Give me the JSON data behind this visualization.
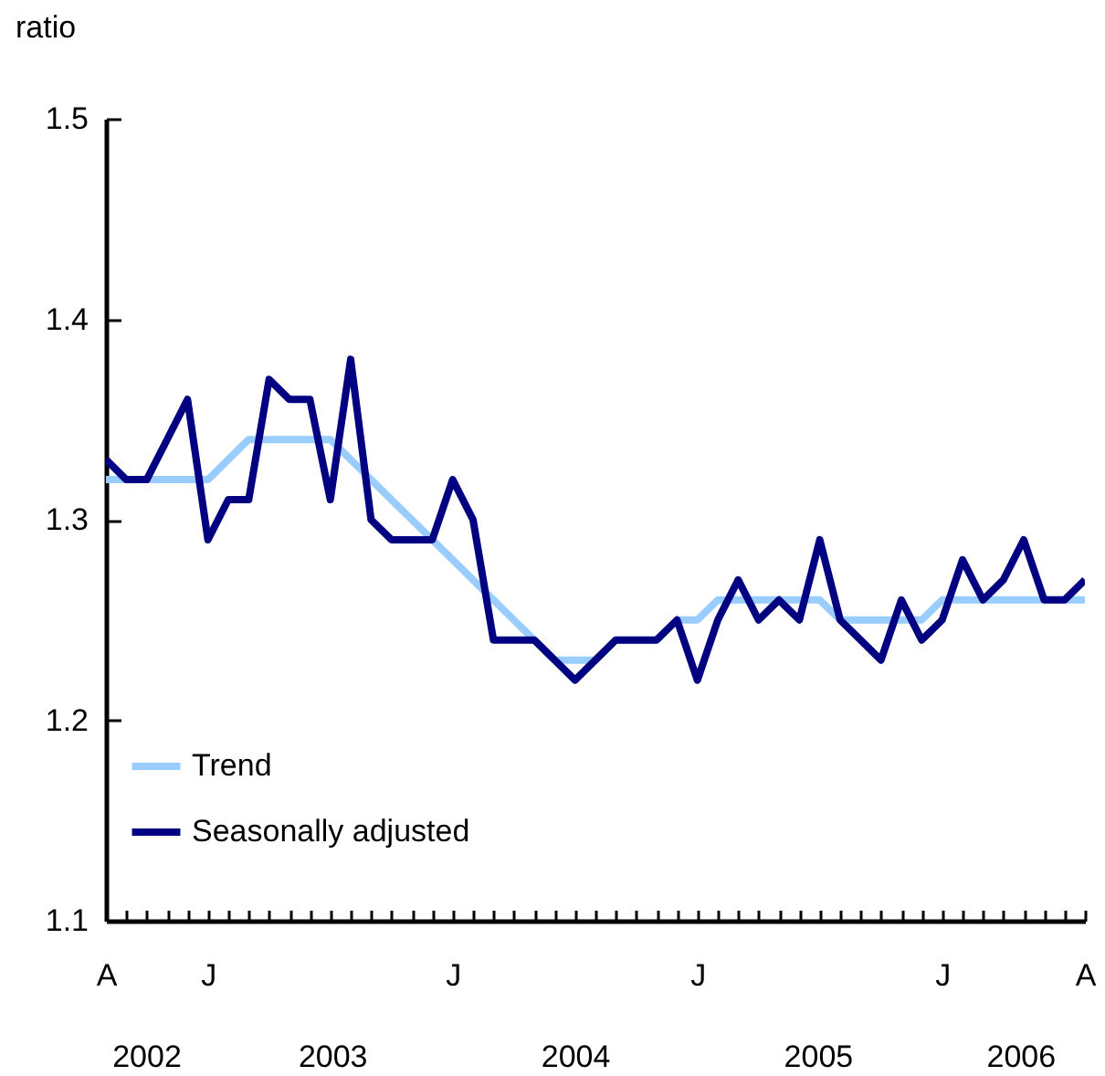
{
  "chart_data": {
    "type": "line",
    "ylabel": "ratio",
    "categories": [
      "A",
      null,
      null,
      null,
      null,
      "J",
      null,
      null,
      null,
      null,
      null,
      null,
      null,
      null,
      null,
      null,
      null,
      "J",
      null,
      null,
      null,
      null,
      null,
      null,
      null,
      null,
      null,
      null,
      null,
      "J",
      null,
      null,
      null,
      null,
      null,
      null,
      null,
      null,
      null,
      null,
      null,
      "J",
      null,
      null,
      null,
      null,
      null,
      null,
      "A"
    ],
    "series": [
      {
        "name": "Trend",
        "color": "#99ccff",
        "values": [
          1.32,
          1.32,
          1.32,
          1.32,
          1.32,
          1.32,
          1.33,
          1.34,
          1.34,
          1.34,
          1.34,
          1.34,
          1.33,
          1.32,
          1.31,
          1.3,
          1.29,
          1.28,
          1.27,
          1.26,
          1.25,
          1.24,
          1.23,
          1.23,
          1.23,
          1.24,
          1.24,
          1.24,
          1.25,
          1.25,
          1.26,
          1.26,
          1.26,
          1.26,
          1.26,
          1.26,
          1.25,
          1.25,
          1.25,
          1.25,
          1.25,
          1.26,
          1.26,
          1.26,
          1.26,
          1.26,
          1.26,
          1.26,
          1.26
        ]
      },
      {
        "name": "Seasonally adjusted",
        "color": "#000080",
        "values": [
          1.33,
          1.32,
          1.32,
          1.34,
          1.36,
          1.29,
          1.31,
          1.31,
          1.37,
          1.36,
          1.36,
          1.31,
          1.38,
          1.3,
          1.29,
          1.29,
          1.29,
          1.32,
          1.3,
          1.24,
          1.24,
          1.24,
          1.23,
          1.22,
          1.23,
          1.24,
          1.24,
          1.24,
          1.25,
          1.22,
          1.25,
          1.27,
          1.25,
          1.26,
          1.25,
          1.29,
          1.25,
          1.24,
          1.23,
          1.26,
          1.24,
          1.25,
          1.28,
          1.26,
          1.27,
          1.29,
          1.26,
          1.26,
          1.27
        ]
      }
    ],
    "ylim": [
      1.1,
      1.5
    ],
    "yticks": [
      1.1,
      1.2,
      1.3,
      1.4,
      1.5
    ],
    "annotations": [
      "2002",
      "2003",
      "2004",
      "2005",
      "2006"
    ],
    "grid": false,
    "legend": "bottom left",
    "marker": "none",
    "line_style": "solid"
  }
}
